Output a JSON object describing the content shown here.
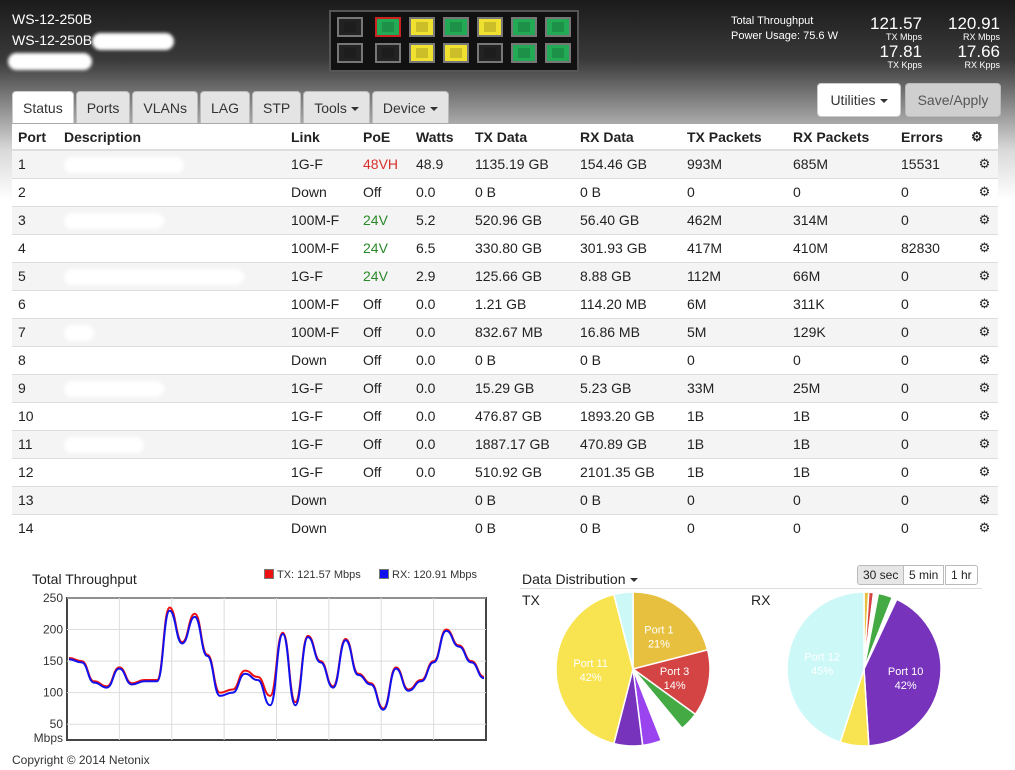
{
  "device": {
    "name1": "WS-12-250B",
    "name2": "WS-12-250B"
  },
  "port_panel": {
    "top": [
      "#222222",
      "#22aa55",
      "#f0e030",
      "#22aa55",
      "#f0e030",
      "#22aa55",
      "#22aa55"
    ],
    "top_border": [
      "#777777",
      "#cc2222",
      "#777777",
      "#777777",
      "#777777",
      "#777777",
      "#777777"
    ],
    "bottom": [
      "#222222",
      "#222222",
      "#f0e030",
      "#f0e030",
      "#222222",
      "#22aa55",
      "#22aa55"
    ]
  },
  "throughput": {
    "label": "Total Throughput",
    "power": "Power Usage: 75.6 W",
    "tx_mbps": "121.57",
    "tx_mbps_unit": "TX Mbps",
    "rx_mbps": "120.91",
    "rx_mbps_unit": "RX Mbps",
    "tx_kpps": "17.81",
    "tx_kpps_unit": "TX Kpps",
    "rx_kpps": "17.66",
    "rx_kpps_unit": "RX Kpps"
  },
  "tabs": [
    "Status",
    "Ports",
    "VLANs",
    "LAG",
    "STP",
    "Tools",
    "Device"
  ],
  "buttons": {
    "utilities": "Utilities",
    "save": "Save/Apply"
  },
  "table": {
    "headers": [
      "Port",
      "Description",
      "Link",
      "PoE",
      "Watts",
      "TX Data",
      "RX Data",
      "TX Packets",
      "RX Packets",
      "Errors"
    ],
    "rows": [
      [
        "1",
        "",
        "1G-F",
        "48VH",
        "48.9",
        "1135.19 GB",
        "154.46 GB",
        "993M",
        "685M",
        "15531"
      ],
      [
        "2",
        "",
        "Down",
        "Off",
        "0.0",
        "0 B",
        "0 B",
        "0",
        "0",
        "0"
      ],
      [
        "3",
        "",
        "100M-F",
        "24V",
        "5.2",
        "520.96 GB",
        "56.40 GB",
        "462M",
        "314M",
        "0"
      ],
      [
        "4",
        "",
        "100M-F",
        "24V",
        "6.5",
        "330.80 GB",
        "301.93 GB",
        "417M",
        "410M",
        "82830"
      ],
      [
        "5",
        "",
        "1G-F",
        "24V",
        "2.9",
        "125.66 GB",
        "8.88 GB",
        "112M",
        "66M",
        "0"
      ],
      [
        "6",
        "",
        "100M-F",
        "Off",
        "0.0",
        "1.21 GB",
        "114.20 MB",
        "6M",
        "311K",
        "0"
      ],
      [
        "7",
        "",
        "100M-F",
        "Off",
        "0.0",
        "832.67 MB",
        "16.86 MB",
        "5M",
        "129K",
        "0"
      ],
      [
        "8",
        "",
        "Down",
        "Off",
        "0.0",
        "0 B",
        "0 B",
        "0",
        "0",
        "0"
      ],
      [
        "9",
        "",
        "1G-F",
        "Off",
        "0.0",
        "15.29 GB",
        "5.23 GB",
        "33M",
        "25M",
        "0"
      ],
      [
        "10",
        "",
        "1G-F",
        "Off",
        "0.0",
        "476.87 GB",
        "1893.20 GB",
        "1B",
        "1B",
        "0"
      ],
      [
        "11",
        "",
        "1G-F",
        "Off",
        "0.0",
        "1887.17 GB",
        "470.89 GB",
        "1B",
        "1B",
        "0"
      ],
      [
        "12",
        "",
        "1G-F",
        "Off",
        "0.0",
        "510.92 GB",
        "2101.35 GB",
        "1B",
        "1B",
        "0"
      ],
      [
        "13",
        "",
        "Down",
        "",
        "",
        "0 B",
        "0 B",
        "0",
        "0",
        "0"
      ],
      [
        "14",
        "",
        "Down",
        "",
        "",
        "0 B",
        "0 B",
        "0",
        "0",
        "0"
      ]
    ]
  },
  "chart_data": [
    {
      "type": "line",
      "title": "Total Throughput",
      "ylabel": "Mbps",
      "ylim": [
        25,
        250
      ],
      "yticks": [
        "250",
        "200",
        "150",
        "100",
        "50"
      ],
      "series": [
        {
          "name": "TX: 121.57 Mbps",
          "color": "#ee1111",
          "values": [
            155,
            150,
            118,
            110,
            140,
            115,
            120,
            120,
            235,
            180,
            225,
            160,
            100,
            105,
            135,
            125,
            95,
            195,
            85,
            190,
            150,
            110,
            185,
            130,
            115,
            75,
            140,
            105,
            120,
            150,
            200,
            175,
            150,
            125
          ]
        },
        {
          "name": "RX: 120.91 Mbps",
          "color": "#1111ee",
          "values": [
            153,
            148,
            116,
            108,
            138,
            113,
            118,
            118,
            230,
            178,
            220,
            158,
            95,
            100,
            130,
            120,
            80,
            193,
            80,
            188,
            148,
            108,
            183,
            128,
            113,
            73,
            138,
            103,
            118,
            148,
            198,
            173,
            148,
            123
          ]
        }
      ]
    },
    {
      "type": "pie",
      "title": "TX",
      "slices": [
        {
          "label": "Port 1",
          "pct": 21,
          "color": "#e8c040"
        },
        {
          "label": "Port 3",
          "pct": 14,
          "color": "#d54444"
        },
        {
          "label": "",
          "pct": 4,
          "color": "#44aa44"
        },
        {
          "label": "",
          "pct": 5,
          "color": "#ffffff"
        },
        {
          "label": "",
          "pct": 4,
          "color": "#9944ee"
        },
        {
          "label": "",
          "pct": 6,
          "color": "#7733bb"
        },
        {
          "label": "Port 11",
          "pct": 42,
          "color": "#f8e450"
        },
        {
          "label": "",
          "pct": 4,
          "color": "#ccf8f8"
        }
      ]
    },
    {
      "type": "pie",
      "title": "RX",
      "slices": [
        {
          "label": "",
          "pct": 1,
          "color": "#e8c040"
        },
        {
          "label": "",
          "pct": 1,
          "color": "#d54444"
        },
        {
          "label": "",
          "pct": 1,
          "color": "#ffffff"
        },
        {
          "label": "",
          "pct": 3,
          "color": "#44aa44"
        },
        {
          "label": "",
          "pct": 1,
          "color": "#ffffff"
        },
        {
          "label": "Port 10",
          "pct": 42,
          "color": "#7733bb"
        },
        {
          "label": "",
          "pct": 6,
          "color": "#f8e450"
        },
        {
          "label": "Port 12",
          "pct": 45,
          "color": "#ccf8f8"
        }
      ]
    }
  ],
  "distribution": {
    "title": "Data Distribution",
    "ranges": [
      "30 sec",
      "5 min",
      "1 hr"
    ]
  },
  "footer": "Copyright © 2014 Netonix"
}
